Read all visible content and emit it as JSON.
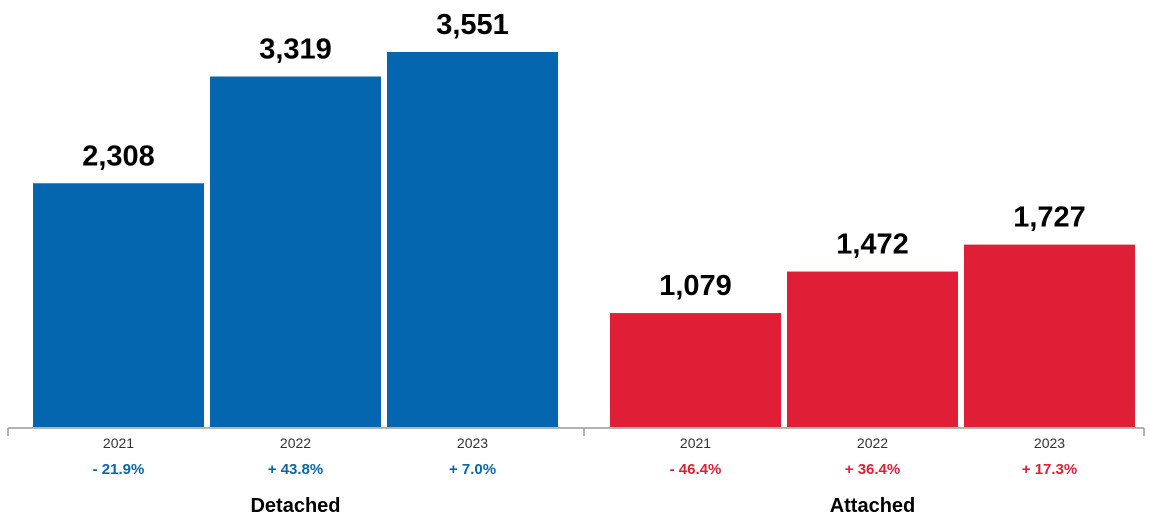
{
  "chart_data": {
    "type": "bar",
    "ylim": [
      0,
      3551
    ],
    "groups": [
      {
        "name": "Detached",
        "color": "#0466AE",
        "change_color": "#0A67AE",
        "bars": [
          {
            "year": "2021",
            "value": 2308,
            "label": "2,308",
            "change": "- 21.9%"
          },
          {
            "year": "2022",
            "value": 3319,
            "label": "3,319",
            "change": "+ 43.8%"
          },
          {
            "year": "2023",
            "value": 3551,
            "label": "3,551",
            "change": "+ 7.0%"
          }
        ]
      },
      {
        "name": "Attached",
        "color": "#E01F37",
        "change_color": "#E01F37",
        "bars": [
          {
            "year": "2021",
            "value": 1079,
            "label": "1,079",
            "change": "- 46.4%"
          },
          {
            "year": "2022",
            "value": 1472,
            "label": "1,472",
            "change": "+ 36.4%"
          },
          {
            "year": "2023",
            "value": 1727,
            "label": "1,727",
            "change": "+ 17.3%"
          }
        ]
      }
    ]
  }
}
